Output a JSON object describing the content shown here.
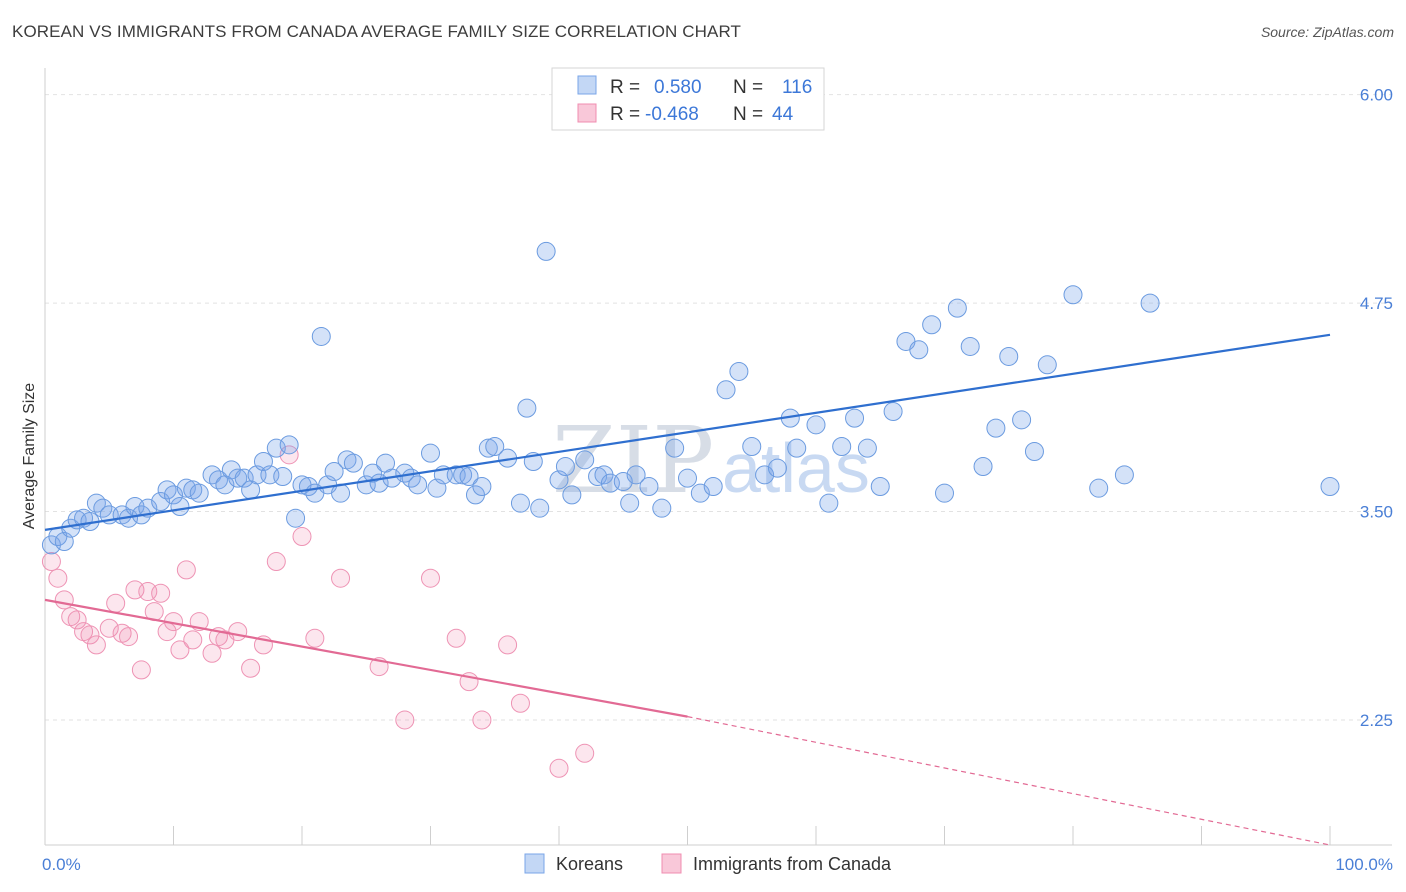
{
  "title": "KOREAN VS IMMIGRANTS FROM CANADA AVERAGE FAMILY SIZE CORRELATION CHART",
  "source": "Source: ZipAtlas.com",
  "colors": {
    "koreans": "#7aa6e8",
    "koreans_line": "#2f6fcf",
    "canada": "#f08db0",
    "canada_line": "#e26a94",
    "axis_text": "#4a7fd6"
  },
  "legend": {
    "rows": [
      {
        "r_label": "R =",
        "r_value": "0.580",
        "n_label": "N =",
        "n_value": "116"
      },
      {
        "r_label": "R =",
        "r_value": "-0.468",
        "n_label": "N =",
        "n_value": "44"
      }
    ]
  },
  "watermark": {
    "zip": "ZIP",
    "atlas": "atlas"
  },
  "chart_data": {
    "type": "scatter",
    "title": "KOREAN VS IMMIGRANTS FROM CANADA AVERAGE FAMILY SIZE CORRELATION CHART",
    "xlabel": "",
    "ylabel": "Average Family Size",
    "xlim": [
      0,
      100
    ],
    "ylim": [
      1.5,
      6.1
    ],
    "x_tick_labels": [
      "0.0%",
      "100.0%"
    ],
    "y_ticks": [
      {
        "value": 6.0,
        "label": "6.00"
      },
      {
        "value": 4.75,
        "label": "4.75"
      },
      {
        "value": 3.5,
        "label": "3.50"
      },
      {
        "value": 2.25,
        "label": "2.25"
      }
    ],
    "grid": true,
    "legend_position": "top-center",
    "series": [
      {
        "name": "Koreans",
        "trend": {
          "x": [
            0,
            100
          ],
          "y": [
            3.39,
            4.56
          ]
        },
        "points": [
          [
            0.5,
            3.3
          ],
          [
            1,
            3.35
          ],
          [
            1.5,
            3.32
          ],
          [
            2,
            3.4
          ],
          [
            2.5,
            3.45
          ],
          [
            3,
            3.46
          ],
          [
            3.5,
            3.44
          ],
          [
            4,
            3.55
          ],
          [
            4.5,
            3.52
          ],
          [
            5,
            3.48
          ],
          [
            6,
            3.48
          ],
          [
            6.5,
            3.46
          ],
          [
            7,
            3.53
          ],
          [
            7.5,
            3.48
          ],
          [
            8,
            3.52
          ],
          [
            9,
            3.56
          ],
          [
            9.5,
            3.63
          ],
          [
            10,
            3.6
          ],
          [
            10.5,
            3.53
          ],
          [
            11,
            3.64
          ],
          [
            11.5,
            3.63
          ],
          [
            12,
            3.61
          ],
          [
            13,
            3.72
          ],
          [
            13.5,
            3.69
          ],
          [
            14,
            3.66
          ],
          [
            14.5,
            3.75
          ],
          [
            15,
            3.7
          ],
          [
            15.5,
            3.7
          ],
          [
            16,
            3.63
          ],
          [
            16.5,
            3.72
          ],
          [
            17,
            3.8
          ],
          [
            17.5,
            3.72
          ],
          [
            18,
            3.88
          ],
          [
            18.5,
            3.71
          ],
          [
            19,
            3.9
          ],
          [
            19.5,
            3.46
          ],
          [
            20,
            3.66
          ],
          [
            20.5,
            3.65
          ],
          [
            21,
            3.61
          ],
          [
            21.5,
            4.55
          ],
          [
            22,
            3.66
          ],
          [
            22.5,
            3.74
          ],
          [
            23,
            3.61
          ],
          [
            23.5,
            3.81
          ],
          [
            24,
            3.79
          ],
          [
            25,
            3.66
          ],
          [
            25.5,
            3.73
          ],
          [
            26,
            3.67
          ],
          [
            26.5,
            3.79
          ],
          [
            27,
            3.7
          ],
          [
            28,
            3.73
          ],
          [
            28.5,
            3.7
          ],
          [
            29,
            3.66
          ],
          [
            30,
            3.85
          ],
          [
            30.5,
            3.64
          ],
          [
            31,
            3.72
          ],
          [
            32,
            3.72
          ],
          [
            32.5,
            3.72
          ],
          [
            33,
            3.71
          ],
          [
            33.5,
            3.6
          ],
          [
            34,
            3.65
          ],
          [
            34.5,
            3.88
          ],
          [
            35,
            3.89
          ],
          [
            36,
            3.82
          ],
          [
            37,
            3.55
          ],
          [
            37.5,
            4.12
          ],
          [
            38,
            3.8
          ],
          [
            38.5,
            3.52
          ],
          [
            39,
            5.06
          ],
          [
            40,
            3.69
          ],
          [
            40.5,
            3.77
          ],
          [
            41,
            3.6
          ],
          [
            42,
            3.81
          ],
          [
            43,
            3.71
          ],
          [
            43.5,
            3.72
          ],
          [
            44,
            3.67
          ],
          [
            45,
            3.68
          ],
          [
            45.5,
            3.55
          ],
          [
            46,
            3.72
          ],
          [
            47,
            3.65
          ],
          [
            48,
            3.52
          ],
          [
            49,
            3.88
          ],
          [
            50,
            3.7
          ],
          [
            51,
            3.61
          ],
          [
            52,
            3.65
          ],
          [
            53,
            4.23
          ],
          [
            54,
            4.34
          ],
          [
            55,
            3.89
          ],
          [
            56,
            3.72
          ],
          [
            57,
            3.76
          ],
          [
            58,
            4.06
          ],
          [
            58.5,
            3.88
          ],
          [
            60,
            4.02
          ],
          [
            61,
            3.55
          ],
          [
            62,
            3.89
          ],
          [
            63,
            4.06
          ],
          [
            64,
            3.88
          ],
          [
            65,
            3.65
          ],
          [
            66,
            4.1
          ],
          [
            67,
            4.52
          ],
          [
            68,
            4.47
          ],
          [
            69,
            4.62
          ],
          [
            70,
            3.61
          ],
          [
            71,
            4.72
          ],
          [
            72,
            4.49
          ],
          [
            73,
            3.77
          ],
          [
            74,
            4.0
          ],
          [
            75,
            4.43
          ],
          [
            76,
            4.05
          ],
          [
            77,
            3.86
          ],
          [
            78,
            4.38
          ],
          [
            80,
            4.8
          ],
          [
            82,
            3.64
          ],
          [
            84,
            3.72
          ],
          [
            86,
            4.75
          ],
          [
            100,
            3.65
          ]
        ]
      },
      {
        "name": "Immigrants from Canada",
        "trend": {
          "x": [
            0,
            50
          ],
          "y": [
            2.97,
            2.27
          ]
        },
        "trend_dashed": {
          "x": [
            50,
            100
          ],
          "y": [
            2.27,
            1.5
          ]
        },
        "points": [
          [
            0.5,
            3.2
          ],
          [
            1,
            3.1
          ],
          [
            1.5,
            2.97
          ],
          [
            2,
            2.87
          ],
          [
            2.5,
            2.85
          ],
          [
            3,
            2.78
          ],
          [
            3.5,
            2.76
          ],
          [
            4,
            2.7
          ],
          [
            5,
            2.8
          ],
          [
            5.5,
            2.95
          ],
          [
            6,
            2.77
          ],
          [
            6.5,
            2.75
          ],
          [
            7,
            3.03
          ],
          [
            7.5,
            2.55
          ],
          [
            8,
            3.02
          ],
          [
            8.5,
            2.9
          ],
          [
            9,
            3.01
          ],
          [
            9.5,
            2.78
          ],
          [
            10,
            2.84
          ],
          [
            10.5,
            2.67
          ],
          [
            11,
            3.15
          ],
          [
            11.5,
            2.73
          ],
          [
            12,
            2.84
          ],
          [
            13,
            2.65
          ],
          [
            13.5,
            2.75
          ],
          [
            14,
            2.73
          ],
          [
            15,
            2.78
          ],
          [
            16,
            2.56
          ],
          [
            17,
            2.7
          ],
          [
            18,
            3.2
          ],
          [
            19,
            3.84
          ],
          [
            20,
            3.35
          ],
          [
            21,
            2.74
          ],
          [
            23,
            3.1
          ],
          [
            26,
            2.57
          ],
          [
            28,
            2.25
          ],
          [
            30,
            3.1
          ],
          [
            32,
            2.74
          ],
          [
            33,
            2.48
          ],
          [
            34,
            2.25
          ],
          [
            36,
            2.7
          ],
          [
            37,
            2.35
          ],
          [
            40,
            1.96
          ],
          [
            42,
            2.05
          ]
        ]
      }
    ]
  },
  "bottom_legend": [
    {
      "label": "Koreans"
    },
    {
      "label": "Immigrants from Canada"
    }
  ]
}
